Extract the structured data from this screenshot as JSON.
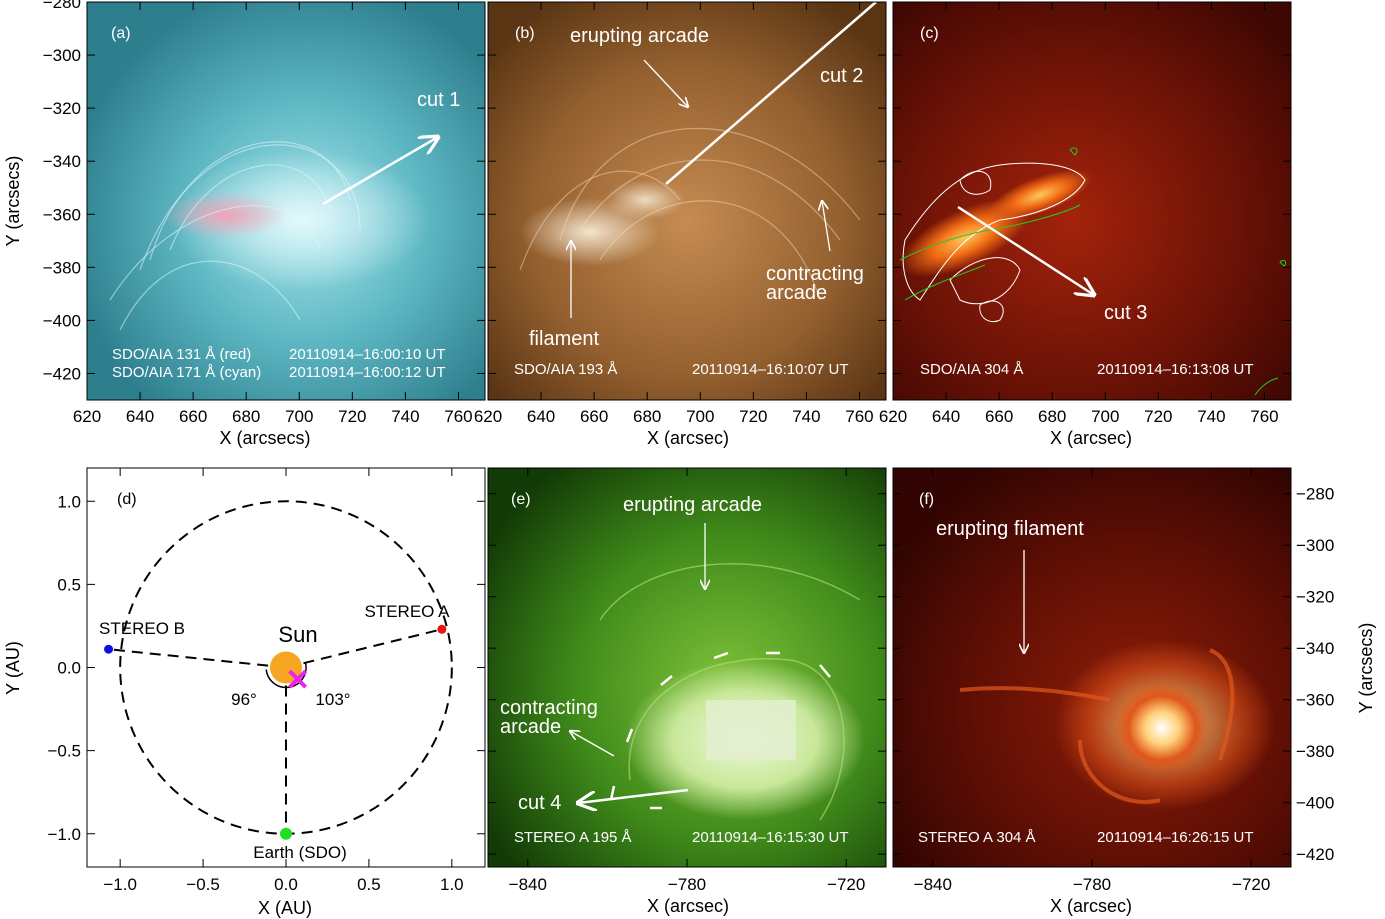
{
  "figure": {
    "panels": [
      {
        "id": "a",
        "letter": "(a)",
        "instrument_lines": [
          "SDO/AIA 131 Å (red)",
          "SDO/AIA 171 Å (cyan)"
        ],
        "time_lines": [
          "20110914–16:00:10 UT",
          "20110914–16:00:12 UT"
        ],
        "annotations": [
          {
            "text": "cut 1"
          }
        ],
        "colors": {
          "base": "#5fb9c4",
          "highlight": "#e79ab0"
        }
      },
      {
        "id": "b",
        "letter": "(b)",
        "instrument_lines": [
          "SDO/AIA 193 Å"
        ],
        "time_lines": [
          "20110914–16:10:07 UT"
        ],
        "annotations": [
          {
            "text": "erupting arcade"
          },
          {
            "text": "cut 2"
          },
          {
            "text": "filament"
          },
          {
            "text": "contracting"
          },
          {
            "text": "arcade"
          }
        ],
        "colors": {
          "base": "#9a6330",
          "highlight": "#f5e6c8"
        }
      },
      {
        "id": "c",
        "letter": "(c)",
        "instrument_lines": [
          "SDO/AIA 304 Å"
        ],
        "time_lines": [
          "20110914–16:13:08 UT"
        ],
        "annotations": [
          {
            "text": "cut 3"
          }
        ],
        "colors": {
          "base": "#6e1205",
          "highlight": "#ff9a2a",
          "contour_white": "#ffffff",
          "contour_green": "#22cc22"
        }
      },
      {
        "id": "e",
        "letter": "(e)",
        "instrument_lines": [
          "STEREO A 195 Å"
        ],
        "time_lines": [
          "20110914–16:15:30 UT"
        ],
        "annotations": [
          {
            "text": "erupting arcade"
          },
          {
            "text": "contracting"
          },
          {
            "text": "arcade"
          },
          {
            "text": "cut 4"
          }
        ],
        "colors": {
          "base": "#3d7a1a",
          "highlight": "#e6f5c8"
        }
      },
      {
        "id": "f",
        "letter": "(f)",
        "instrument_lines": [
          "STEREO A 304 Å"
        ],
        "time_lines": [
          "20110914–16:26:15 UT"
        ],
        "annotations": [
          {
            "text": "erupting filament"
          }
        ],
        "colors": {
          "base": "#5a0d04",
          "highlight": "#fff2c0"
        }
      }
    ],
    "axes": {
      "xlabel_a": "X (arcsecs)",
      "xlabel_bc": "X (arcsec)",
      "ylabel_a": "Y (arcsecs)",
      "xlabel_d": "X (AU)",
      "ylabel_d": "Y (AU)",
      "xlabel_ef": "X (arcsec)",
      "ylabel_f": "Y (arcsecs)"
    }
  },
  "chart_data": [
    {
      "type": "image",
      "panel": "top-row",
      "xlabel": "X (arcsecs)",
      "ylabel": "Y (arcsecs)",
      "xlim": [
        620,
        770
      ],
      "ylim": [
        -430,
        -280
      ],
      "x_ticks": [
        620,
        640,
        660,
        680,
        700,
        720,
        740,
        760
      ],
      "x_tick_labels": [
        "620",
        "640",
        "660",
        "680",
        "700",
        "720",
        "740",
        "760"
      ],
      "y_ticks": [
        -280,
        -300,
        -320,
        -340,
        -360,
        -380,
        -400,
        -420
      ],
      "y_tick_labels": [
        "−280",
        "−300",
        "−320",
        "−340",
        "−360",
        "−380",
        "−400",
        "−420"
      ]
    },
    {
      "type": "scatter",
      "panel": "d",
      "letter": "(d)",
      "xlabel": "X (AU)",
      "ylabel": "Y (AU)",
      "xlim": [
        -1.2,
        1.2
      ],
      "ylim": [
        -1.2,
        1.2
      ],
      "x_ticks": [
        -1.0,
        -0.5,
        0.0,
        0.5,
        1.0
      ],
      "x_tick_labels": [
        "−1.0",
        "−0.5",
        "0.0",
        "0.5",
        "1.0"
      ],
      "y_ticks": [
        1.0,
        0.5,
        0.0,
        -0.5,
        -1.0
      ],
      "y_tick_labels": [
        "1.0",
        "0.5",
        "0.0",
        "−0.5",
        "−1.0"
      ],
      "orbit_radius": 1.0,
      "points": [
        {
          "label": "Sun",
          "x": 0.0,
          "y": 0.0,
          "color": "#f5a623"
        },
        {
          "label": "STEREO A",
          "x": 0.94,
          "y": 0.23,
          "color": "#ee1111"
        },
        {
          "label": "STEREO B",
          "x": -1.07,
          "y": 0.11,
          "color": "#1111dd"
        },
        {
          "label": "Earth (SDO)",
          "x": 0.0,
          "y": -1.0,
          "color": "#22dd22"
        },
        {
          "label": "",
          "x": 0.07,
          "y": -0.07,
          "color": "#ee22ee"
        }
      ],
      "angles": [
        {
          "label": "96°"
        },
        {
          "label": "103°"
        }
      ]
    },
    {
      "type": "image",
      "panel": "bottom-right",
      "xlabel": "X (arcsec)",
      "ylabel": "Y (arcsecs)",
      "xlim": [
        -855,
        -705
      ],
      "ylim": [
        -425,
        -270
      ],
      "x_ticks": [
        -840,
        -780,
        -720
      ],
      "x_tick_labels": [
        "−840",
        "−780",
        "−720"
      ],
      "y_ticks": [
        -280,
        -300,
        -320,
        -340,
        -360,
        -380,
        -400,
        -420
      ],
      "y_tick_labels": [
        "−280",
        "−300",
        "−320",
        "−340",
        "−360",
        "−380",
        "−400",
        "−420"
      ]
    }
  ]
}
